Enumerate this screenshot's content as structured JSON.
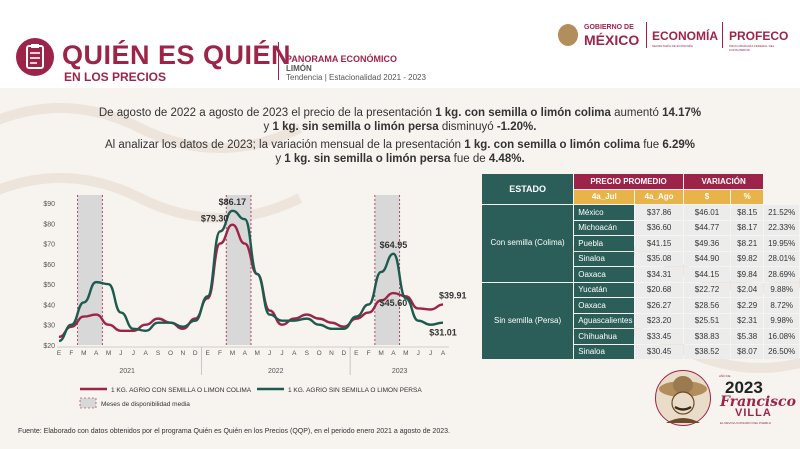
{
  "header": {
    "title": "QUIÉN ES QUIÉN",
    "subtitle": "EN LOS PRECIOS",
    "panorama": "PANORAMA ECONÓMICO",
    "product": "LIMÓN",
    "period": "Tendencia | Estacionalidad 2021 - 2023",
    "gov_small": "GOBIERNO DE",
    "gov_big": "MÉXICO",
    "economia": "ECONOMÍA",
    "economia_sub": "SECRETARÍA DE ECONOMÍA",
    "profeco": "PROFECO",
    "profeco_sub": "PROCURADURÍA FEDERAL DEL CONSUMIDOR"
  },
  "intro": {
    "p1a": "De agosto de 2022 a agosto de 2023 el precio de la presentación ",
    "p1b": "1 kg. con semilla o limón colima",
    "p1c": " aumentó ",
    "p1d": "14.17%",
    "p2a": "y ",
    "p2b": "1 kg. sin semilla o limón persa",
    "p2c": " disminuyó ",
    "p2d": "-1.20%.",
    "p3a": "Al analizar los datos de 2023; la variación mensual de la presentación ",
    "p3b": "1 kg. con semilla o limón colima",
    "p3c": " fue ",
    "p3d": "6.29%",
    "p4a": "y ",
    "p4b": "1 kg. sin semilla o limón persa",
    "p4c": " fue de ",
    "p4d": "4.48%."
  },
  "chart_data": {
    "type": "line",
    "x": [
      "E",
      "F",
      "M",
      "A",
      "M",
      "J",
      "J",
      "A",
      "S",
      "O",
      "N",
      "D",
      "E",
      "F",
      "M",
      "A",
      "M",
      "J",
      "J",
      "A",
      "S",
      "O",
      "N",
      "D",
      "E",
      "F",
      "M",
      "A",
      "M",
      "J",
      "J",
      "A"
    ],
    "years": [
      {
        "label": "2021",
        "start": 0,
        "end": 11
      },
      {
        "label": "2022",
        "start": 12,
        "end": 23
      },
      {
        "label": "2023",
        "start": 24,
        "end": 31
      }
    ],
    "ylim": [
      20,
      90
    ],
    "yticks": [
      "$20",
      "$30",
      "$40",
      "$50",
      "$60",
      "$70",
      "$80",
      "$90"
    ],
    "ytick_values": [
      20,
      30,
      40,
      50,
      60,
      70,
      80,
      90
    ],
    "shaded_ranges": [
      [
        2,
        3
      ],
      [
        14,
        15
      ],
      [
        26,
        27
      ]
    ],
    "series": [
      {
        "name": "1 KG. AGRIO CON SEMILLA O LIMON COLIMA",
        "color": "#9d2449",
        "values": [
          24,
          29,
          34,
          35,
          30,
          27,
          27,
          30,
          33,
          31,
          28,
          33,
          43,
          70,
          79.3,
          70,
          55,
          37,
          30,
          33,
          35,
          33,
          31,
          29,
          33,
          36,
          42,
          45.6,
          44,
          38,
          37.5,
          39.91
        ]
      },
      {
        "name": "1 KG. AGRIO SIN SEMILLA O LIMON PERSA",
        "color": "#1e5b4f",
        "values": [
          22,
          30,
          41,
          51,
          50,
          36,
          28,
          27,
          31,
          31,
          29,
          32,
          44,
          76,
          86.17,
          82,
          55,
          35,
          32,
          32,
          33,
          30,
          28,
          28,
          34,
          40,
          56,
          64.95,
          43,
          32,
          30,
          31.01
        ]
      }
    ],
    "point_labels": [
      {
        "text": "$79.30",
        "series": 0,
        "index": 14,
        "pos": "left"
      },
      {
        "text": "$86.17",
        "series": 1,
        "index": 14,
        "pos": "above"
      },
      {
        "text": "$64.95",
        "series": 1,
        "index": 27,
        "pos": "above"
      },
      {
        "text": "$45.60",
        "series": 0,
        "index": 27,
        "pos": "below"
      },
      {
        "text": "$39.91",
        "series": 0,
        "index": 31,
        "pos": "right"
      },
      {
        "text": "$31.01",
        "series": 1,
        "index": 31,
        "pos": "below"
      }
    ],
    "legend": {
      "shaded_label": "Meses de disponibilidad media"
    }
  },
  "table": {
    "h_estado": "ESTADO",
    "h_precio": "PRECIO PROMEDIO",
    "h_var": "VARIACIÓN",
    "sub": [
      "4a_Jul",
      "4a_Ago",
      "$",
      "%"
    ],
    "groups": [
      {
        "label": "Con semilla (Colima)",
        "rows": [
          {
            "name": "México",
            "v1": "$37.86",
            "v2": "$46.01",
            "v3": "$8.15",
            "v4": "21.52%"
          },
          {
            "name": "Michoacán",
            "v1": "$36.60",
            "v2": "$44.77",
            "v3": "$8.17",
            "v4": "22.33%"
          },
          {
            "name": "Puebla",
            "v1": "$41.15",
            "v2": "$49.36",
            "v3": "$8.21",
            "v4": "19.95%"
          },
          {
            "name": "Sinaloa",
            "v1": "$35.08",
            "v2": "$44.90",
            "v3": "$9.82",
            "v4": "28.01%"
          },
          {
            "name": "Oaxaca",
            "v1": "$34.31",
            "v2": "$44.15",
            "v3": "$9.84",
            "v4": "28.69%"
          }
        ]
      },
      {
        "label": "Sin semilla (Persa)",
        "rows": [
          {
            "name": "Yucatán",
            "v1": "$20.68",
            "v2": "$22.72",
            "v3": "$2.04",
            "v4": "9.88%"
          },
          {
            "name": "Oaxaca",
            "v1": "$26.27",
            "v2": "$28.56",
            "v3": "$2.29",
            "v4": "8.72%"
          },
          {
            "name": "Aguascalientes",
            "v1": "$23.20",
            "v2": "$25.51",
            "v3": "$2.31",
            "v4": "9.98%"
          },
          {
            "name": "Chihuahua",
            "v1": "$33.45",
            "v2": "$38.83",
            "v3": "$5.38",
            "v4": "16.08%"
          },
          {
            "name": "Sinaloa",
            "v1": "$30.45",
            "v2": "$38.52",
            "v3": "$8.07",
            "v4": "26.50%"
          }
        ]
      }
    ]
  },
  "footer": "Fuente: Elaborado con datos obtenidos por el programa Quién es Quién en los Precios (QQP), en el periodo enero 2021 a agosto de 2023.",
  "villa": {
    "year": "2023",
    "year_small": "AÑO DE",
    "name": "Francisco",
    "surname": "VILLA",
    "tagline": "EL REVOLUCIONARIO DEL PUEBLO"
  },
  "colors": {
    "primary": "#9d2449",
    "green": "#1e5b4f",
    "gold": "#e8b44a"
  }
}
